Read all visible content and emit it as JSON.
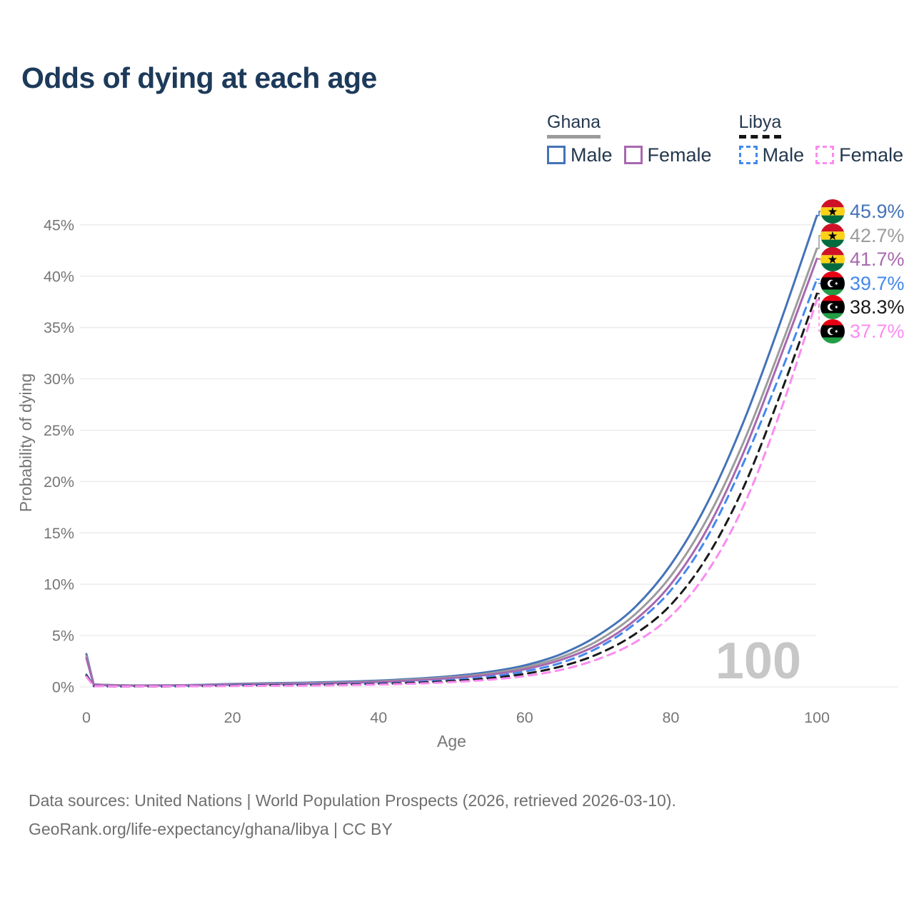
{
  "title": "Odds of dying at each age",
  "watermark_age": "100",
  "legend": {
    "groups": [
      {
        "country": "Ghana",
        "line_style": "solid",
        "underline_color": "#9b9b9b",
        "items": [
          {
            "label": "Male",
            "color": "#4473b8"
          },
          {
            "label": "Female",
            "color": "#a868ae"
          }
        ]
      },
      {
        "country": "Libya",
        "line_style": "dashed",
        "underline_color": "#151515",
        "items": [
          {
            "label": "Male",
            "color": "#4488ee"
          },
          {
            "label": "Female",
            "color": "#fb8cf0"
          }
        ]
      }
    ]
  },
  "footer": {
    "line1": "Data sources: United Nations | World Population Prospects (2026, retrieved 2026-03-10).",
    "line2": "GeoRank.org/life-expectancy/ghana/libya | CC BY"
  },
  "chart_data": {
    "type": "line",
    "title": "Odds of dying at each age",
    "xlabel": "Age",
    "ylabel": "Probability of dying",
    "xlim": [
      0,
      100
    ],
    "ylim_percent": [
      0,
      47
    ],
    "x_ticks": [
      0,
      20,
      40,
      60,
      80,
      100
    ],
    "y_ticks_percent": [
      0,
      5,
      10,
      15,
      20,
      25,
      30,
      35,
      40,
      45
    ],
    "grid": "horizontal",
    "legend_position": "top-right",
    "ages": [
      0,
      1,
      5,
      10,
      15,
      20,
      25,
      30,
      35,
      40,
      45,
      50,
      55,
      60,
      65,
      70,
      75,
      80,
      85,
      90,
      95,
      100
    ],
    "series": [
      {
        "name": "Ghana Male",
        "country": "Ghana",
        "sex": "Male",
        "flag": "ghana",
        "color": "#4473b8",
        "dashed": false,
        "end_label": "45.9%",
        "values_percent": [
          3.2,
          0.25,
          0.16,
          0.15,
          0.2,
          0.3,
          0.36,
          0.42,
          0.5,
          0.62,
          0.8,
          1.05,
          1.45,
          2.1,
          3.2,
          5.0,
          7.7,
          11.9,
          17.9,
          25.9,
          35.5,
          45.9
        ]
      },
      {
        "name": "Ghana Both sexes",
        "country": "Ghana",
        "sex": "Both",
        "flag": "ghana",
        "color": "#9c9c9c",
        "dashed": false,
        "end_label": "42.7%",
        "values_percent": [
          3.0,
          0.23,
          0.15,
          0.14,
          0.18,
          0.26,
          0.31,
          0.36,
          0.44,
          0.55,
          0.72,
          0.95,
          1.3,
          1.9,
          2.9,
          4.5,
          7.0,
          10.8,
          16.4,
          23.9,
          33.0,
          42.7
        ]
      },
      {
        "name": "Ghana Female",
        "country": "Ghana",
        "sex": "Female",
        "flag": "ghana",
        "color": "#a868ae",
        "dashed": false,
        "end_label": "41.7%",
        "values_percent": [
          2.8,
          0.21,
          0.14,
          0.13,
          0.16,
          0.22,
          0.27,
          0.31,
          0.39,
          0.49,
          0.64,
          0.86,
          1.18,
          1.72,
          2.65,
          4.1,
          6.45,
          10.0,
          15.4,
          22.9,
          32.1,
          41.7
        ]
      },
      {
        "name": "Libya Male",
        "country": "Libya",
        "sex": "Male",
        "flag": "libya",
        "color": "#4488ee",
        "dashed": true,
        "end_label": "39.7%",
        "values_percent": [
          1.2,
          0.08,
          0.05,
          0.05,
          0.09,
          0.16,
          0.19,
          0.21,
          0.26,
          0.34,
          0.47,
          0.67,
          0.98,
          1.5,
          2.35,
          3.8,
          6.1,
          9.4,
          14.6,
          21.9,
          30.5,
          39.7
        ]
      },
      {
        "name": "Libya Both sexes",
        "country": "Libya",
        "sex": "Both",
        "flag": "libya",
        "color": "#1a1a1a",
        "dashed": true,
        "end_label": "38.3%",
        "values_percent": [
          1.1,
          0.07,
          0.04,
          0.04,
          0.07,
          0.12,
          0.15,
          0.17,
          0.22,
          0.29,
          0.4,
          0.57,
          0.83,
          1.27,
          2.0,
          3.2,
          5.1,
          8.0,
          12.7,
          19.5,
          28.5,
          38.3
        ]
      },
      {
        "name": "Libya Female",
        "country": "Libya",
        "sex": "Female",
        "flag": "libya",
        "color": "#fb8cf0",
        "dashed": true,
        "end_label": "37.7%",
        "values_percent": [
          1.0,
          0.06,
          0.04,
          0.04,
          0.06,
          0.09,
          0.11,
          0.13,
          0.17,
          0.23,
          0.32,
          0.47,
          0.69,
          1.05,
          1.67,
          2.7,
          4.3,
          6.9,
          11.2,
          17.7,
          26.8,
          37.7
        ]
      }
    ],
    "flag_colors": {
      "ghana": {
        "red": "#CE1126",
        "gold": "#FCD116",
        "green": "#006B3F",
        "star": "#000000"
      },
      "libya": {
        "red": "#E70013",
        "black": "#000000",
        "green": "#239E46",
        "emblem": "#ffffff"
      }
    }
  }
}
